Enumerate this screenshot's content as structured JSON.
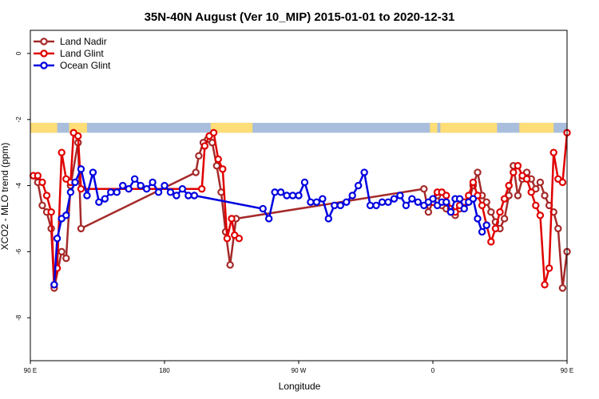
{
  "chart_data": {
    "type": "line",
    "title": "35N-40N August (Ver 10_MIP)   2015-01-01 to 2020-12-31",
    "xlabel": "Longitude",
    "ylabel": "XCO2 - MLO trend (ppm)",
    "xlim": [
      90,
      450
    ],
    "ylim": [
      -9.3,
      0.7
    ],
    "xticks": [
      {
        "value": 90,
        "label": "90 E"
      },
      {
        "value": 180,
        "label": "180"
      },
      {
        "value": 270,
        "label": "90 W"
      },
      {
        "value": 360,
        "label": "0"
      },
      {
        "value": 450,
        "label": "90 E"
      },
      {
        "value": 540,
        "label": "180"
      }
    ],
    "yticks": [
      {
        "value": 0,
        "label": "0"
      },
      {
        "value": -2,
        "label": "-2"
      },
      {
        "value": -4,
        "label": "-4"
      },
      {
        "value": -6,
        "label": "-6"
      },
      {
        "value": -8,
        "label": "-8"
      }
    ],
    "grid": false,
    "legend_position": "top-left",
    "surface_band": {
      "ymin": -2.4,
      "ymax": -2.1,
      "land_color": "#ffdd77",
      "ocean_color": "#a8bedc",
      "land_ranges": [
        [
          90,
          108
        ],
        [
          116,
          128
        ],
        [
          211,
          239
        ],
        [
          358,
          363
        ],
        [
          365,
          403
        ],
        [
          418,
          441
        ],
        [
          469,
          496
        ]
      ]
    },
    "series": [
      {
        "name": "Land Nadir",
        "color": "#a52a2a",
        "x": [
          92,
          95,
          98,
          101,
          104,
          106,
          111,
          114,
          117,
          122,
          124,
          201,
          203,
          206,
          209,
          212,
          215,
          218,
          221,
          224,
          228,
          354,
          357,
          360,
          363,
          366,
          369,
          372,
          375,
          378,
          381,
          384,
          387,
          390,
          393,
          396,
          399,
          402,
          405,
          408,
          411,
          414,
          417,
          420,
          423,
          426,
          429,
          432,
          435,
          438,
          441,
          444,
          447,
          450,
          453,
          455,
          460,
          463,
          466,
          471,
          473,
          476
        ],
        "y": [
          -3.7,
          -3.9,
          -4.6,
          -4.8,
          -5.3,
          -7.1,
          -6.0,
          -6.2,
          -4.0,
          -2.7,
          -5.3,
          -3.6,
          -3.1,
          -2.7,
          -2.6,
          -2.7,
          -3.4,
          -4.2,
          -5.4,
          -6.4,
          -5.0,
          -4.1,
          -4.8,
          -4.5,
          -4.3,
          -4.6,
          -4.7,
          -4.8,
          -4.9,
          -4.7,
          -4.6,
          -4.5,
          -4.0,
          -3.6,
          -4.3,
          -4.5,
          -4.8,
          -5.1,
          -5.3,
          -5.0,
          -4.3,
          -3.4,
          -4.3,
          -3.8,
          -3.6,
          -3.8,
          -4.1,
          -3.9,
          -4.3,
          -4.6,
          -4.8,
          -5.3,
          -7.1,
          -6.0,
          -6.2,
          -4.0,
          -2.7,
          -5.3,
          null,
          null,
          null,
          null
        ],
        "marker": "circle"
      },
      {
        "name": "Land Glint",
        "color": "#e00000",
        "x": [
          92,
          95,
          98,
          101,
          104,
          106,
          108,
          111,
          114,
          117,
          119,
          122,
          124,
          205,
          207,
          210,
          213,
          216,
          219,
          222,
          225,
          227,
          230,
          232,
          360,
          363,
          366,
          369,
          372,
          375,
          378,
          381,
          384,
          387,
          390,
          393,
          396,
          399,
          402,
          405,
          408,
          411,
          414,
          417,
          420,
          423,
          426,
          429,
          432,
          435,
          438,
          441,
          444,
          447,
          450,
          453,
          455,
          458,
          461,
          464,
          467,
          469,
          471
        ],
        "y": [
          -3.7,
          -3.7,
          -3.9,
          -4.3,
          -4.8,
          -7.0,
          -6.5,
          -3.0,
          -3.8,
          -3.9,
          -2.4,
          -2.5,
          -4.1,
          -4.1,
          -2.8,
          -2.5,
          -2.4,
          -3.2,
          -3.5,
          -5.6,
          -5.0,
          -5.5,
          -5.6,
          null,
          -4.5,
          -4.2,
          -4.2,
          -4.3,
          -4.7,
          -4.8,
          -4.6,
          -4.5,
          -4.3,
          -3.9,
          -4.3,
          -4.6,
          -5.2,
          -5.7,
          -5.3,
          -4.8,
          -4.4,
          -4.0,
          -3.6,
          -3.4,
          -3.7,
          -3.8,
          -4.2,
          -4.6,
          -4.9,
          -7.0,
          -6.5,
          -3.0,
          -3.8,
          -3.9,
          -2.4,
          -2.5,
          null,
          null,
          null,
          null,
          null,
          null,
          null
        ],
        "marker": "circle"
      },
      {
        "name": "Ocean Glint",
        "color": "#0000e0",
        "x": [
          106,
          108,
          111,
          114,
          117,
          120,
          124,
          128,
          132,
          136,
          140,
          144,
          148,
          152,
          156,
          160,
          164,
          168,
          172,
          176,
          180,
          184,
          188,
          192,
          196,
          200,
          246,
          250,
          254,
          258,
          262,
          266,
          270,
          274,
          278,
          282,
          286,
          290,
          294,
          298,
          302,
          306,
          310,
          314,
          318,
          322,
          326,
          330,
          334,
          338,
          342,
          346,
          350,
          354,
          357,
          360,
          363,
          366,
          369,
          372,
          375,
          378,
          381,
          384,
          387,
          390,
          393,
          396,
          399,
          402,
          405
        ],
        "y": [
          -7.0,
          -5.6,
          -5.0,
          -4.9,
          -4.2,
          -3.9,
          -3.5,
          -4.3,
          -3.6,
          -4.5,
          -4.4,
          -4.2,
          -4.2,
          -4.0,
          -4.1,
          -3.8,
          -4.0,
          -4.1,
          -3.9,
          -4.2,
          -4.0,
          -4.2,
          -4.3,
          -4.1,
          -4.3,
          -4.3,
          -4.7,
          -5.0,
          -4.2,
          -4.2,
          -4.3,
          -4.3,
          -4.3,
          -3.9,
          -4.5,
          -4.5,
          -4.4,
          -5.0,
          -4.6,
          -4.6,
          -4.5,
          -4.3,
          -4.0,
          -3.6,
          -4.6,
          -4.6,
          -4.5,
          -4.5,
          -4.4,
          -4.3,
          -4.6,
          -4.4,
          -4.5,
          -4.6,
          -4.5,
          -4.4,
          -4.6,
          -4.5,
          -4.5,
          -4.8,
          -4.4,
          -4.4,
          -4.7,
          -4.5,
          -4.4,
          -5.0,
          -5.4,
          -5.2,
          null,
          null,
          null
        ],
        "marker": "circle"
      }
    ]
  }
}
